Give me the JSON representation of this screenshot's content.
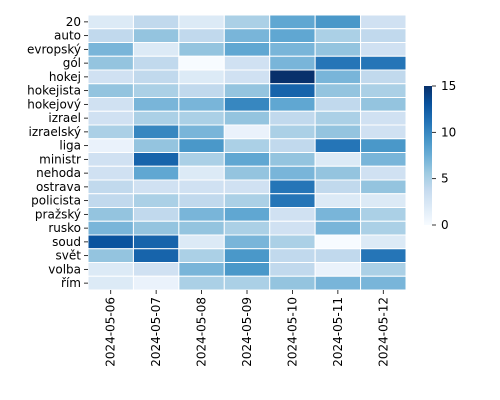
{
  "chart_data": {
    "type": "heatmap",
    "title": "",
    "xlabel": "",
    "ylabel": "",
    "columns": [
      "2024-05-06",
      "2024-05-07",
      "2024-05-08",
      "2024-05-09",
      "2024-05-10",
      "2024-05-11",
      "2024-05-12"
    ],
    "rows": [
      "20",
      "auto",
      "evropský",
      "gól",
      "hokej",
      "hokejista",
      "hokejový",
      "izrael",
      "izraelský",
      "liga",
      "ministr",
      "nehoda",
      "ostrava",
      "policista",
      "pražský",
      "rusko",
      "soud",
      "svět",
      "volba",
      "řím"
    ],
    "values": [
      [
        2,
        4,
        2,
        5,
        8,
        9,
        3
      ],
      [
        4,
        6,
        4,
        7,
        8,
        5,
        4
      ],
      [
        7,
        2,
        6,
        8,
        7,
        6,
        3
      ],
      [
        6,
        4,
        0,
        3,
        7,
        11,
        11
      ],
      [
        3,
        4,
        2,
        3,
        15,
        7,
        4
      ],
      [
        6,
        5,
        4,
        6,
        12,
        6,
        5
      ],
      [
        3,
        7,
        7,
        10,
        8,
        4,
        6
      ],
      [
        3,
        5,
        5,
        6,
        4,
        5,
        3
      ],
      [
        5,
        10,
        7,
        1,
        5,
        6,
        3
      ],
      [
        1,
        6,
        9,
        5,
        4,
        11,
        9
      ],
      [
        3,
        12,
        5,
        8,
        6,
        2,
        7
      ],
      [
        3,
        8,
        2,
        6,
        7,
        6,
        3
      ],
      [
        4,
        3,
        3,
        3,
        11,
        4,
        6
      ],
      [
        4,
        5,
        4,
        5,
        11,
        2,
        2
      ],
      [
        6,
        4,
        7,
        8,
        3,
        7,
        5
      ],
      [
        7,
        6,
        6,
        5,
        3,
        7,
        5
      ],
      [
        13,
        12,
        2,
        7,
        5,
        0,
        2
      ],
      [
        6,
        12,
        5,
        9,
        4,
        4,
        11
      ],
      [
        2,
        3,
        7,
        9,
        4,
        1,
        5
      ],
      [
        2,
        1,
        5,
        5,
        6,
        7,
        7
      ]
    ],
    "colorbar": {
      "min": 0,
      "max": 15,
      "ticks": [
        0,
        5,
        10,
        15
      ]
    },
    "colormap": "Blues",
    "cell_border": "#ffffff"
  }
}
